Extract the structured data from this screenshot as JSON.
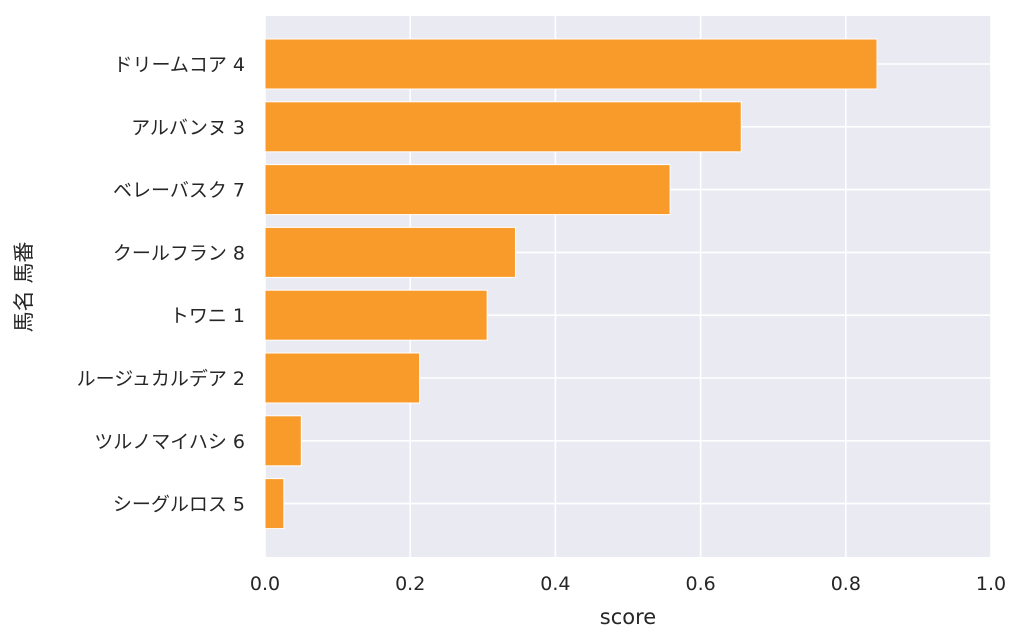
{
  "chart_data": {
    "type": "bar",
    "orientation": "horizontal",
    "categories": [
      "ドリームコア 4",
      "アルバンヌ 3",
      "ベレーバスク 7",
      "クールフラン 8",
      "トワニ 1",
      "ルージュカルデア 2",
      "ツルノマイハシ 6",
      "シーグルロス 5"
    ],
    "values": [
      0.843,
      0.656,
      0.558,
      0.345,
      0.306,
      0.213,
      0.05,
      0.026
    ],
    "xlabel": "score",
    "ylabel": "馬名 馬番",
    "xlim": [
      0,
      1.0
    ],
    "xticks": [
      "0.0",
      "0.2",
      "0.4",
      "0.6",
      "0.8",
      "1.0"
    ],
    "grid": true,
    "colors": {
      "bar": "#f99b2b",
      "bar_edge": "#ffffff",
      "background": "#eaeaf2",
      "grid": "#ffffff"
    }
  }
}
